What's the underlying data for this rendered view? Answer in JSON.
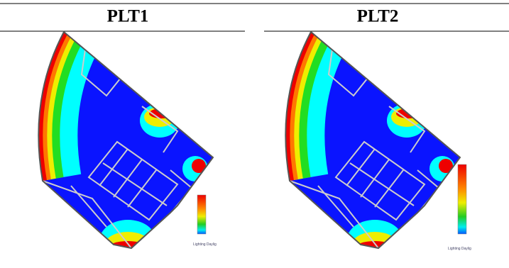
{
  "table": {
    "headers": [
      "PLT1",
      "PLT2"
    ]
  },
  "legends": [
    "Lighting Daylig",
    "Lighting Daylig"
  ]
}
